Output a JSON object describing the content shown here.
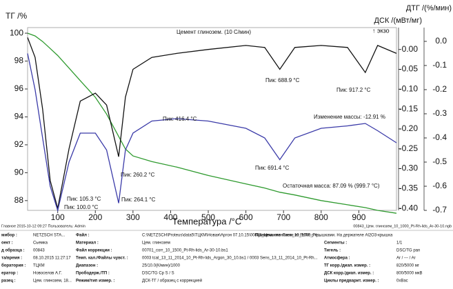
{
  "chart_data": {
    "type": "line",
    "title": "Цемент глинозем. (10 С/мин)",
    "exo_label": "↑ экзо",
    "xlabel": "Температура /°C",
    "ylabel": "ТГ /%",
    "y2label": "ДСК /(мВт/мг)",
    "y3label": "ДТГ /(%/мин)",
    "x": [
      20,
      40,
      60,
      80,
      100,
      130,
      160,
      200,
      230,
      262,
      280,
      300,
      350,
      416.4,
      500,
      600,
      650,
      690,
      730,
      800,
      870,
      917.2,
      950,
      1000
    ],
    "series": [
      {
        "name": "ТГ",
        "color": "#2e9a2e",
        "axis": "y",
        "values": [
          100,
          99.8,
          99.4,
          98.9,
          98.4,
          97.5,
          96.6,
          95.4,
          94.2,
          92.6,
          91.7,
          91.2,
          90.8,
          90.4,
          89.8,
          89.2,
          88.9,
          88.6,
          88.4,
          88.0,
          87.7,
          87.5,
          87.3,
          87.09
        ]
      },
      {
        "name": "ДСК",
        "color": "#111111",
        "axis": "y2",
        "values": [
          0.03,
          -0.02,
          -0.15,
          -0.33,
          -0.4,
          -0.25,
          -0.13,
          -0.11,
          -0.14,
          -0.27,
          -0.12,
          -0.05,
          -0.02,
          -0.01,
          0.0,
          0.01,
          0.005,
          -0.05,
          0.005,
          0.01,
          0.005,
          -0.058,
          0.01,
          -0.01
        ]
      },
      {
        "name": "ДТГ",
        "color": "#3a3aa8",
        "axis": "y3",
        "values": [
          -0.05,
          -0.2,
          -0.4,
          -0.6,
          -0.7,
          -0.5,
          -0.38,
          -0.38,
          -0.45,
          -0.67,
          -0.45,
          -0.38,
          -0.33,
          -0.32,
          -0.33,
          -0.36,
          -0.4,
          -0.49,
          -0.4,
          -0.36,
          -0.35,
          -0.34,
          -0.37,
          -0.42
        ]
      }
    ],
    "xlim": [
      20,
      1000
    ],
    "xticks": [
      100,
      200,
      300,
      400,
      500,
      600,
      700,
      800,
      900
    ],
    "ylim": [
      87.3,
      100.4
    ],
    "yticks": [
      88,
      90,
      92,
      94,
      96,
      98,
      100
    ],
    "y2lim": [
      -0.405,
      0.055
    ],
    "y2ticks": [
      {
        "value": 0,
        "label": "0.00"
      },
      -0.05,
      {
        "value": -0.1,
        "label": "-0.10"
      },
      -0.15,
      {
        "value": -0.2,
        "label": "-0.20"
      },
      -0.25,
      {
        "value": -0.3,
        "label": "-0.30"
      },
      -0.35,
      {
        "value": -0.4,
        "label": "-0.40"
      }
    ],
    "y3lim": [
      -0.7,
      0.057
    ],
    "y3ticks": [
      {
        "value": 0,
        "label": "0.0"
      },
      -0.1,
      -0.2,
      -0.3,
      -0.4,
      -0.5,
      -0.6,
      -0.7
    ],
    "annotations": [
      {
        "text": "Пик: 100.0 °C",
        "series": 1
      },
      {
        "text": "Пик: 260.2 °C",
        "series": 1
      },
      {
        "text": "Пик: 688.9 °C",
        "series": 1
      },
      {
        "text": "Пик: 917.2 °C",
        "series": 1
      },
      {
        "text": "Пик: 105.3 °C",
        "series": 2
      },
      {
        "text": "Пик: 264.1 °C",
        "series": 2
      },
      {
        "text": "Пик: 416.4 °C",
        "series": 2
      },
      {
        "text": "Пик: 691.4 °C",
        "series": 2
      },
      {
        "text": "Изменение массы: -12.91 %",
        "series": 0
      },
      {
        "text": "Остаточная масса: 87.09 % (999.7 °C)",
        "series": 0
      }
    ]
  },
  "status": {
    "left": "Главное    2015-10-12 09:27    Пользователь: Admin",
    "right": "00843_Цем. глинозем_10_1000_Pt-Rh-lids_Ar-30-10.ngb"
  },
  "table": {
    "rows": [
      [
        "мибор :",
        "NETZSCH STA...",
        "Файл :",
        "C:\\NETZSCH\\Proteus\\data5\\ТЦКМ\\Новая\\Аргон 07.10.15\\00843_Цем. глинозем_10_1000_Pt-...",
        "Примечание :",
        "Тигли из Pt/Rh с крышками. На держателе Al2O3-крышка"
      ],
      [
        "оект :",
        "Сьемка",
        "Материал :",
        "Цем. глинозем",
        "Сегменты :",
        "1/1"
      ],
      [
        "д образца :",
        "00843",
        "Файл коррекции :",
        "00701_corr_10_1500_Pt-Rh-lids_Ar-30-10.bs1",
        "Тигель :",
        "DSC/TG pan"
      ],
      [
        "та/время :",
        "08.10.2015 11:27:17",
        "Темп. кал./Файлы чувст. :",
        "0003 tcal_13_11_2014_10_Pt-Rh-lids_Argon_30_10.bs1 / 0003 Sens_13_11_2014_10_Pt-Rh...",
        "Атмосфера :",
        "Ar / --- / Ar"
      ],
      [
        "боратория :",
        "ТЦКМ",
        "Диапазон :",
        "25/10.0(К/мин)/1000",
        "ТГ корр./диап. измер. :",
        "820/5000 мг"
      ],
      [
        "ератор :",
        "Новоселов А.Г.",
        "Прободерж./ТП :",
        "DSC/TG Cp S / S",
        "ДСК корр./диап. измер. :",
        "800/5000 мкВ"
      ],
      [
        "разец :",
        "Цем. глинозем, 18...",
        "Режим/тип измер. :",
        "ДСК-ТГ / образец с коррекцией",
        "Циклы предварит. измер. :",
        "0xBac"
      ]
    ]
  }
}
